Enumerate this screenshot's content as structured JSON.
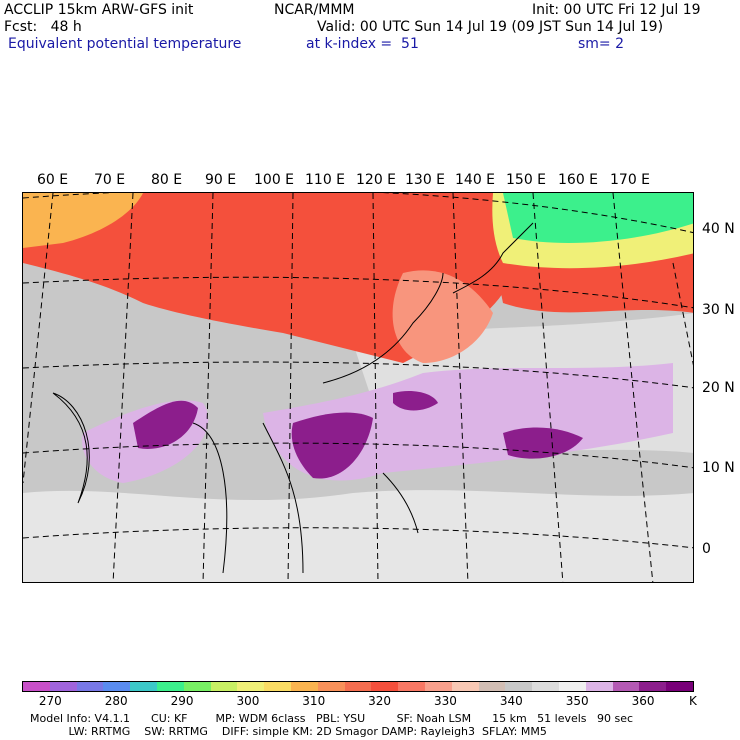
{
  "header": {
    "model_title": "ACCLIP 15km ARW-GFS init",
    "org": "NCAR/MMM",
    "init": "Init: 00 UTC Fri 12 Jul 19",
    "fcst": "Fcst:   48 h",
    "valid": "Valid: 00 UTC Sun 14 Jul 19 (09 JST Sun 14 Jul 19)",
    "field": "Equivalent potential temperature",
    "level": "at k-index =  51",
    "smoothing": "sm= 2"
  },
  "map": {
    "lon_labels": [
      "60 E",
      "70 E",
      "80 E",
      "90 E",
      "100 E",
      "110 E",
      "120 E",
      "130 E",
      "140 E",
      "150 E",
      "160 E",
      "170 E"
    ],
    "lat_labels": [
      "40 N",
      "30 N",
      "20 N",
      "10 N",
      "0"
    ],
    "colors": {
      "ocean_gray": "#c8c8c8",
      "light_gray": "#e6e6e6",
      "warm": "#f4503c",
      "warm_light": "#f8957d",
      "cold": "#3cf08c",
      "lilac": "#dcb4e6",
      "purple": "#8c1e8c"
    }
  },
  "colorbar": {
    "colors": [
      "#c850c8",
      "#a064dc",
      "#7878e6",
      "#5a8cf0",
      "#3cc8c8",
      "#3cf08c",
      "#78f064",
      "#c8f064",
      "#f0f078",
      "#fadc64",
      "#fab450",
      "#f8915a",
      "#f46e50",
      "#f4503c",
      "#f87864",
      "#f8a08c",
      "#f8c8b4",
      "#d2beb4",
      "#c8c8c8",
      "#dcdcdc",
      "#f0f0f0",
      "#dcb4e6",
      "#b45ab4",
      "#8c1e8c",
      "#780078"
    ],
    "labels": [
      "270",
      "280",
      "290",
      "300",
      "310",
      "320",
      "330",
      "340",
      "350",
      "360"
    ],
    "unit": "K"
  },
  "footer": {
    "line1": "Model Info: V4.1.1      CU: KF        MP: WDM 6class   PBL: YSU         SF: Noah LSM      15 km   51 levels   90 sec",
    "line2": "           LW: RRTMG    SW: RRTMG    DIFF: simple KM: 2D Smagor DAMP: Rayleigh3  SFLAY: MM5"
  }
}
